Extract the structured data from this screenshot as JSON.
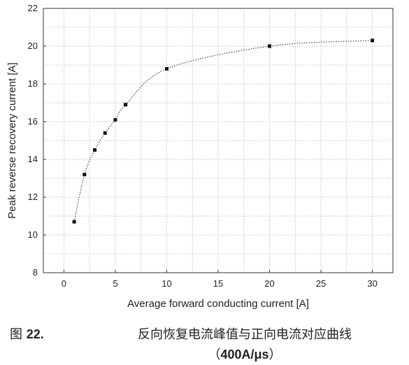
{
  "chart_data": {
    "type": "scatter",
    "xlabel": "Average forward conducting current [A]",
    "ylabel": "Peak reverse recovery current [A]",
    "xlim": [
      -2,
      32
    ],
    "ylim": [
      8,
      22
    ],
    "xticks": [
      0,
      5,
      10,
      15,
      20,
      25,
      30
    ],
    "yticks": [
      8,
      10,
      12,
      14,
      16,
      18,
      20,
      22
    ],
    "grid": true,
    "trendline": "dotted fitted curve",
    "series": [
      {
        "x": [
          1,
          2,
          3,
          4,
          5,
          6,
          10,
          20,
          30
        ],
        "y": [
          10.7,
          13.2,
          14.5,
          15.4,
          16.1,
          16.9,
          18.8,
          20.0,
          20.3
        ]
      }
    ]
  },
  "caption": {
    "figure_prefix": "图 ",
    "figure_number": "22.",
    "title": "反向恢复电流峰值与正向电流对应曲线",
    "subtitle_open": "（",
    "subtitle_value": "400A/μs",
    "subtitle_close": "）"
  }
}
